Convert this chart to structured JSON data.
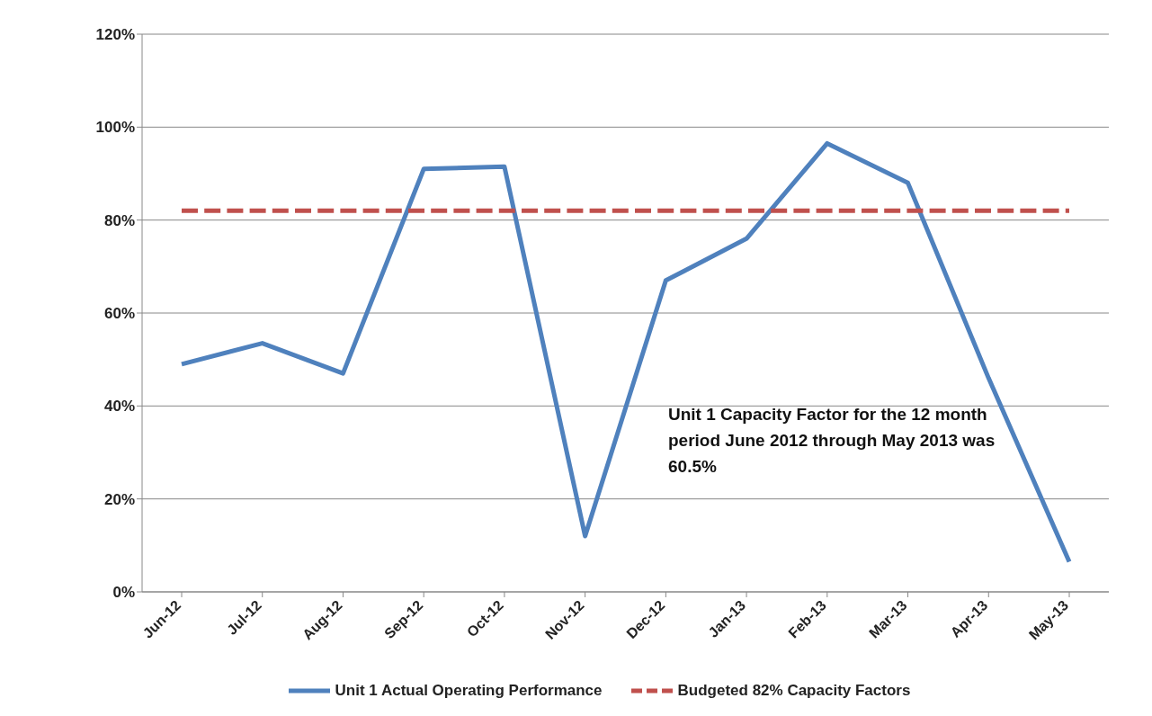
{
  "chart_data": {
    "type": "line",
    "categories": [
      "Jun-12",
      "Jul-12",
      "Aug-12",
      "Sep-12",
      "Oct-12",
      "Nov-12",
      "Dec-12",
      "Jan-13",
      "Feb-13",
      "Mar-13",
      "Apr-13",
      "May-13"
    ],
    "series": [
      {
        "name": "Unit 1 Actual Operating Performance",
        "color": "#4f81bd",
        "line_style": "solid",
        "values": [
          49,
          53.5,
          47,
          91,
          91.5,
          12,
          67,
          76,
          96.5,
          88,
          46,
          6.5
        ]
      },
      {
        "name": "Budgeted 82% Capacity Factors",
        "color": "#c0504d",
        "line_style": "dashed",
        "values": [
          82,
          82,
          82,
          82,
          82,
          82,
          82,
          82,
          82,
          82,
          82,
          82
        ]
      }
    ],
    "ylim": [
      0,
      120
    ],
    "yticks": [
      {
        "value": 0,
        "label": "0%"
      },
      {
        "value": 20,
        "label": "20%"
      },
      {
        "value": 40,
        "label": "40%"
      },
      {
        "value": 60,
        "label": "60%"
      },
      {
        "value": 80,
        "label": "80%"
      },
      {
        "value": 100,
        "label": "100%"
      },
      {
        "value": 120,
        "label": "120%"
      }
    ],
    "grid": "y",
    "legend": "bottom",
    "marker": "none",
    "annotations": [
      "Unit 1 Capacity Factor for the 12 month period June 2012 through May 2013 was 60.5%"
    ]
  }
}
